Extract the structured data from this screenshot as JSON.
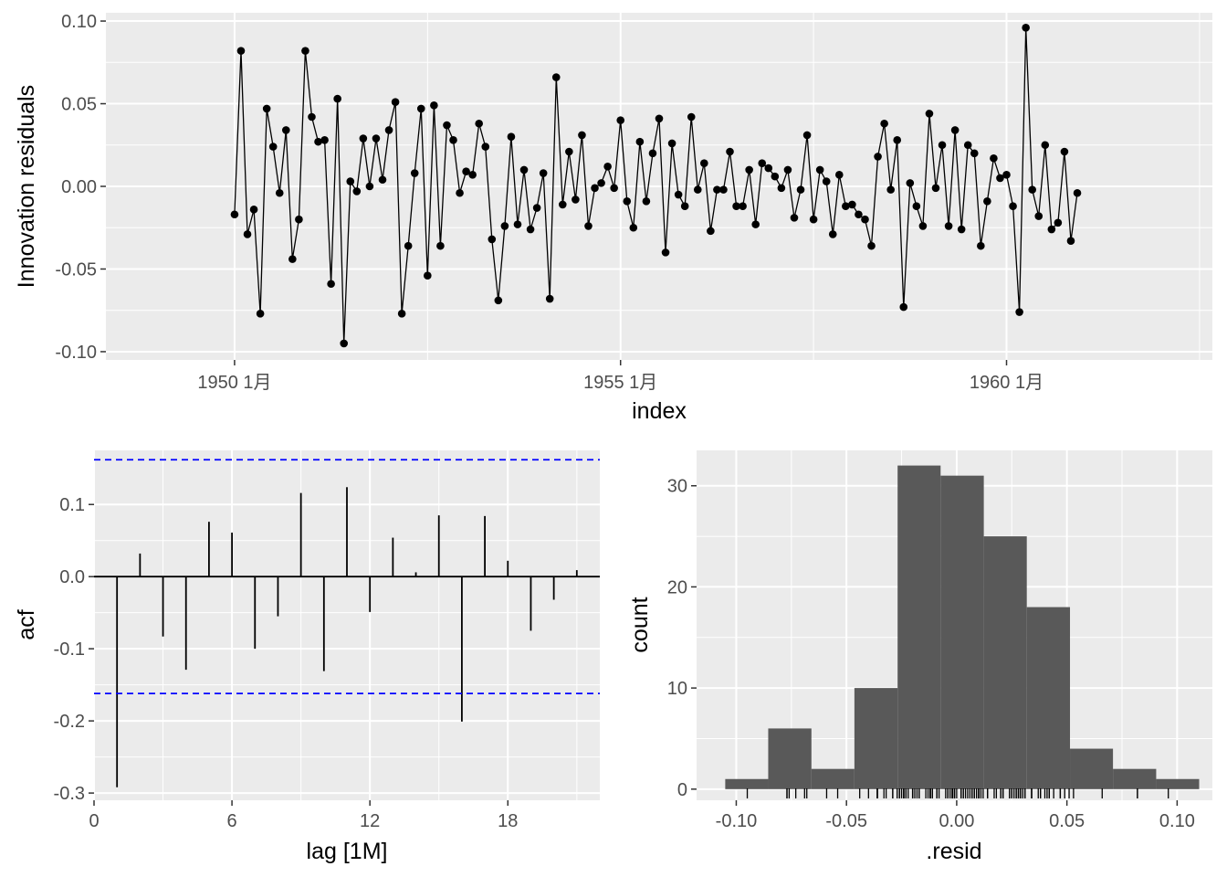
{
  "colors": {
    "panel_bg": "#ebebeb",
    "grid_major": "#ffffff",
    "line": "#000000",
    "ci": "#0000ff",
    "bar": "#595959",
    "tick_text": "#4d4d4d"
  },
  "chart_data": [
    {
      "type": "line",
      "title": "",
      "xlabel": "index",
      "ylabel": "Innovation residuals",
      "x_start": "1950 1月",
      "x_frequency": "monthly",
      "x_ticks": [
        "1950 1月",
        "1955 1月",
        "1960 1月"
      ],
      "y_ticks": [
        "0.10",
        "0.05",
        "0.00",
        "-0.05",
        "-0.10"
      ],
      "ylim": [
        -0.105,
        0.105
      ],
      "points": true,
      "grid": true,
      "values": [
        -0.017,
        0.082,
        -0.029,
        -0.014,
        -0.077,
        0.047,
        0.024,
        -0.004,
        0.034,
        -0.044,
        -0.02,
        0.082,
        0.042,
        0.027,
        0.028,
        -0.059,
        0.053,
        -0.095,
        0.003,
        -0.003,
        0.029,
        0.0,
        0.029,
        0.004,
        0.034,
        0.051,
        -0.077,
        -0.036,
        0.008,
        0.047,
        -0.054,
        0.049,
        -0.036,
        0.037,
        0.028,
        -0.004,
        0.009,
        0.007,
        0.038,
        0.024,
        -0.032,
        -0.069,
        -0.024,
        0.03,
        -0.023,
        0.01,
        -0.026,
        -0.013,
        0.008,
        -0.068,
        0.066,
        -0.011,
        0.021,
        -0.008,
        0.031,
        -0.024,
        -0.001,
        0.002,
        0.012,
        -0.001,
        0.04,
        -0.009,
        -0.025,
        0.027,
        -0.009,
        0.02,
        0.041,
        -0.04,
        0.026,
        -0.005,
        -0.012,
        0.042,
        -0.002,
        0.014,
        -0.027,
        -0.002,
        -0.002,
        0.021,
        -0.012,
        -0.012,
        0.01,
        -0.023,
        0.014,
        0.011,
        0.006,
        -0.001,
        0.01,
        -0.019,
        -0.002,
        0.031,
        -0.02,
        0.01,
        0.003,
        -0.029,
        0.007,
        -0.012,
        -0.011,
        -0.017,
        -0.02,
        -0.036,
        0.018,
        0.038,
        -0.002,
        0.028,
        -0.073,
        0.002,
        -0.012,
        -0.024,
        0.044,
        -0.001,
        0.025,
        -0.024,
        0.034,
        -0.026,
        0.025,
        0.02,
        -0.036,
        -0.009,
        0.017,
        0.005,
        0.007,
        -0.012,
        -0.076,
        0.096,
        -0.002,
        -0.018,
        0.025,
        -0.026,
        -0.022,
        0.021,
        -0.033,
        -0.004
      ]
    },
    {
      "type": "bar",
      "title": "",
      "xlabel": "lag [1M]",
      "ylabel": "acf",
      "lags": [
        1,
        2,
        3,
        4,
        5,
        6,
        7,
        8,
        9,
        10,
        11,
        12,
        13,
        14,
        15,
        16,
        17,
        18,
        19,
        20,
        21
      ],
      "values": [
        -0.292,
        0.032,
        -0.083,
        -0.129,
        0.076,
        0.061,
        -0.1,
        -0.055,
        0.116,
        -0.131,
        0.124,
        -0.049,
        0.054,
        0.006,
        0.085,
        -0.201,
        0.084,
        0.022,
        -0.075,
        -0.032,
        0.009
      ],
      "ci_bounds": [
        0.162,
        -0.162
      ],
      "x_ticks": [
        "0",
        "6",
        "12",
        "18"
      ],
      "y_ticks": [
        "0.1",
        "0.0",
        "-0.1",
        "-0.2",
        "-0.3"
      ],
      "xlim": [
        0,
        22
      ],
      "ylim": [
        -0.31,
        0.175
      ],
      "grid": true
    },
    {
      "type": "bar",
      "subtype": "histogram",
      "title": "",
      "xlabel": ".resid",
      "ylabel": "count",
      "bins": [
        {
          "start": -0.105,
          "end": -0.0855,
          "count": 1
        },
        {
          "start": -0.0855,
          "end": -0.0659,
          "count": 6
        },
        {
          "start": -0.0659,
          "end": -0.0464,
          "count": 2
        },
        {
          "start": -0.0464,
          "end": -0.0268,
          "count": 10
        },
        {
          "start": -0.0268,
          "end": -0.0073,
          "count": 32
        },
        {
          "start": -0.0073,
          "end": 0.0123,
          "count": 31
        },
        {
          "start": 0.0123,
          "end": 0.0318,
          "count": 25
        },
        {
          "start": 0.0318,
          "end": 0.0514,
          "count": 18
        },
        {
          "start": 0.0514,
          "end": 0.0709,
          "count": 4
        },
        {
          "start": 0.0709,
          "end": 0.0905,
          "count": 2
        },
        {
          "start": 0.0905,
          "end": 0.11,
          "count": 1
        }
      ],
      "rug": true,
      "x_ticks": [
        "-0.10",
        "-0.05",
        "0.00",
        "0.05",
        "0.10"
      ],
      "y_ticks": [
        "30",
        "20",
        "10",
        "0"
      ],
      "xlim": [
        -0.118,
        0.116
      ],
      "ylim": [
        -1.1,
        33.5
      ],
      "grid": true
    }
  ]
}
